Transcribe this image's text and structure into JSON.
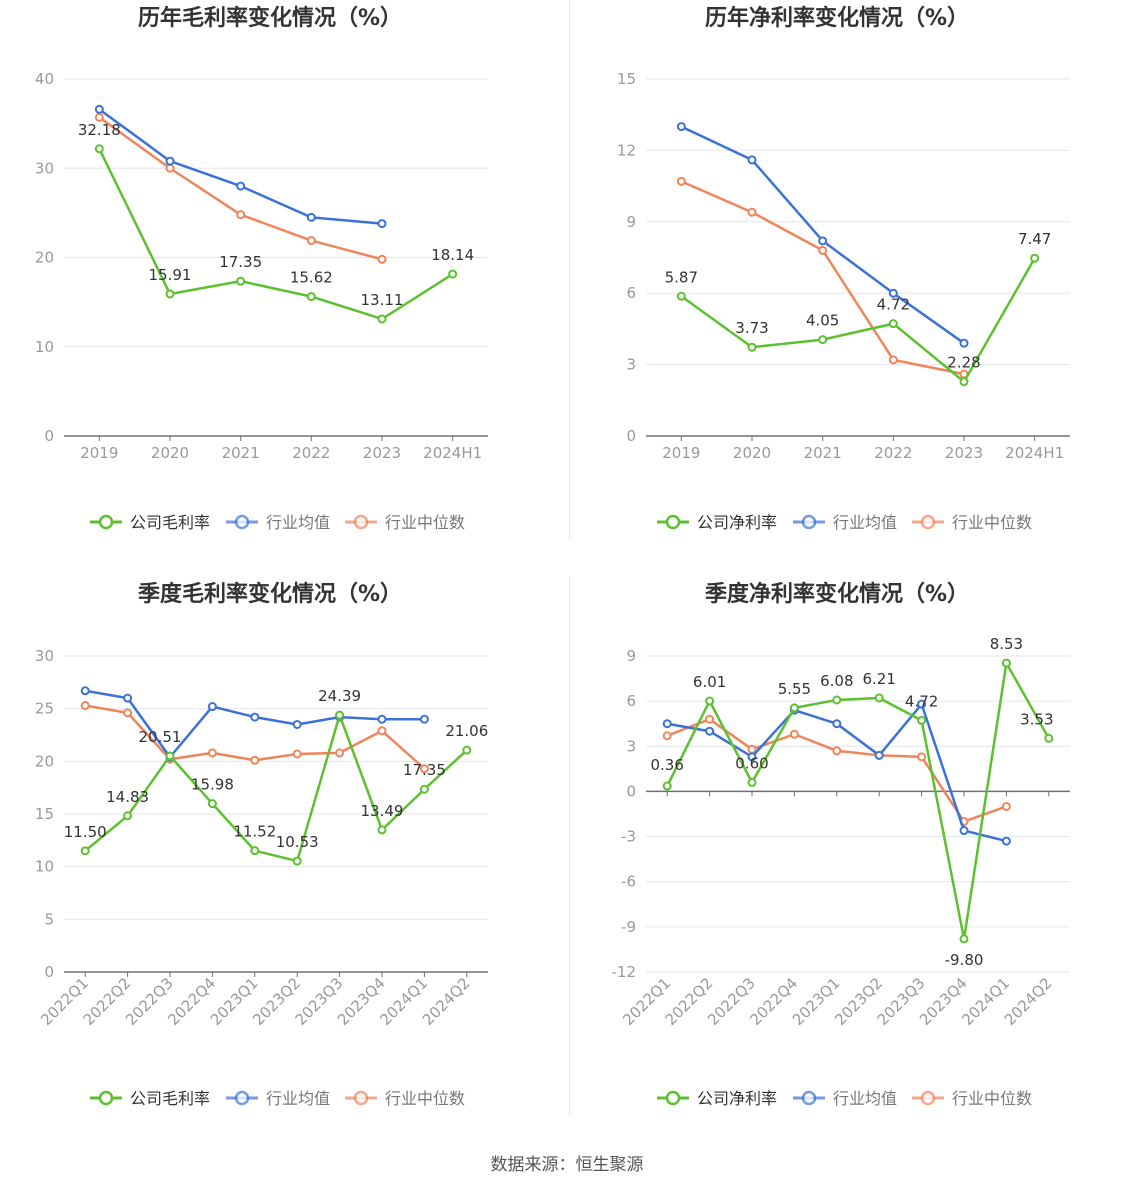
{
  "source": {
    "label": "数据来源：",
    "value": "恒生聚源"
  },
  "colors": {
    "company": "#5cc12e",
    "avg": "#3b72d8",
    "median": "#f0855b",
    "axis": "#999999",
    "grid": "#e3e6ee",
    "title": "#333333",
    "label": "#333333"
  },
  "legend_labels": {
    "gross": [
      "公司毛利率",
      "行业均值",
      "行业中位数"
    ],
    "net": [
      "公司净利率",
      "行业均值",
      "行业中位数"
    ]
  },
  "chart_data": [
    {
      "type": "line",
      "title": "历年毛利率变化情况（%）",
      "categories": [
        "2019",
        "2020",
        "2021",
        "2022",
        "2023",
        "2024H1"
      ],
      "ylim": [
        0,
        40
      ],
      "yticks": [
        0,
        10,
        20,
        30,
        40
      ],
      "grid": true,
      "legend": "bottom",
      "series": [
        {
          "name": "公司毛利率",
          "values": [
            32.18,
            15.91,
            17.35,
            15.62,
            13.11,
            18.14
          ],
          "labeled": true
        },
        {
          "name": "行业均值",
          "values": [
            36.6,
            30.8,
            28.0,
            24.5,
            23.8,
            null
          ]
        },
        {
          "name": "行业中位数",
          "values": [
            35.7,
            30.0,
            24.8,
            21.9,
            19.8,
            null
          ]
        }
      ]
    },
    {
      "type": "line",
      "title": "历年净利率变化情况（%）",
      "categories": [
        "2019",
        "2020",
        "2021",
        "2022",
        "2023",
        "2024H1"
      ],
      "ylim": [
        0,
        15
      ],
      "yticks": [
        0,
        3,
        6,
        9,
        12,
        15
      ],
      "grid": true,
      "legend": "bottom",
      "series": [
        {
          "name": "公司净利率",
          "values": [
            5.87,
            3.73,
            4.05,
            4.72,
            2.28,
            7.47
          ],
          "labeled": true
        },
        {
          "name": "行业均值",
          "values": [
            13.0,
            11.6,
            8.2,
            6.0,
            3.9,
            null
          ]
        },
        {
          "name": "行业中位数",
          "values": [
            10.7,
            9.4,
            7.8,
            3.2,
            2.6,
            null
          ]
        }
      ]
    },
    {
      "type": "line",
      "title": "季度毛利率变化情况（%）",
      "categories": [
        "2022Q1",
        "2022Q2",
        "2022Q3",
        "2022Q4",
        "2023Q1",
        "2023Q2",
        "2023Q3",
        "2023Q4",
        "2024Q1",
        "2024Q2"
      ],
      "ylim": [
        0,
        30
      ],
      "yticks": [
        0,
        5,
        10,
        15,
        20,
        25,
        30
      ],
      "grid": true,
      "legend": "bottom",
      "series": [
        {
          "name": "公司毛利率",
          "values": [
            11.5,
            14.83,
            20.51,
            15.98,
            11.52,
            10.53,
            24.39,
            13.49,
            17.35,
            21.06
          ],
          "labeled": true
        },
        {
          "name": "行业均值",
          "values": [
            26.7,
            26.0,
            20.4,
            25.2,
            24.2,
            23.5,
            24.2,
            24.0,
            24.0,
            null
          ]
        },
        {
          "name": "行业中位数",
          "values": [
            25.3,
            24.6,
            20.2,
            20.8,
            20.1,
            20.7,
            20.8,
            22.9,
            19.3,
            null
          ]
        }
      ]
    },
    {
      "type": "line",
      "title": "季度净利率变化情况（%）",
      "categories": [
        "2022Q1",
        "2022Q2",
        "2022Q3",
        "2022Q4",
        "2023Q1",
        "2023Q2",
        "2023Q3",
        "2023Q4",
        "2024Q1",
        "2024Q2"
      ],
      "ylim": [
        -12,
        9
      ],
      "yticks": [
        -12,
        -9,
        -6,
        -3,
        0,
        3,
        6,
        9
      ],
      "grid": true,
      "legend": "bottom",
      "series": [
        {
          "name": "公司净利率",
          "values": [
            0.36,
            6.01,
            0.6,
            5.55,
            6.08,
            6.21,
            4.72,
            -9.8,
            8.53,
            3.53
          ],
          "labeled": true
        },
        {
          "name": "行业均值",
          "values": [
            4.5,
            4.0,
            2.3,
            5.4,
            4.5,
            2.4,
            5.8,
            -2.6,
            -3.3,
            null
          ]
        },
        {
          "name": "行业中位数",
          "values": [
            3.7,
            4.8,
            2.8,
            3.8,
            2.7,
            2.4,
            2.3,
            -2.0,
            -1.0,
            null
          ]
        }
      ]
    }
  ]
}
